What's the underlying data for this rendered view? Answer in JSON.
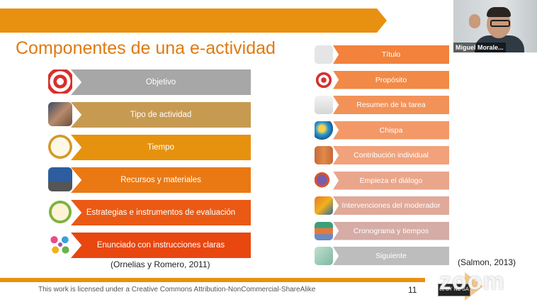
{
  "slide": {
    "title": "Componentes de una e-actividad",
    "left_items": [
      {
        "label": "Objetivo",
        "color": "#a7a7a7",
        "icon": "target-icon"
      },
      {
        "label": "Tipo de actividad",
        "color": "#c79a52",
        "icon": "activity-photo-icon"
      },
      {
        "label": "Tiempo",
        "color": "#e6920f",
        "icon": "alarm-clock-icon"
      },
      {
        "label": "Recursos y materiales",
        "color": "#ea7914",
        "icon": "laptop-icon"
      },
      {
        "label": "Estrategias e instrumentos de evaluación",
        "color": "#ea5a14",
        "icon": "stopwatch-question-icon"
      },
      {
        "label": "Enunciado con instrucciones claras",
        "color": "#e8470f",
        "icon": "colorful-dots-icon"
      }
    ],
    "right_items": [
      {
        "label": "Título",
        "color": "#f2823c",
        "icon": "math-logo-icon"
      },
      {
        "label": "Propósito",
        "color": "#f28a47",
        "icon": "target-small-icon"
      },
      {
        "label": "Resumen de la tarea",
        "color": "#f29258",
        "icon": "document-icon"
      },
      {
        "label": "Chispa",
        "color": "#f39968",
        "icon": "globe-icon"
      },
      {
        "label": "Contribución individual",
        "color": "#f1a27a",
        "icon": "people-icon"
      },
      {
        "label": "Empieza el diálogo",
        "color": "#eaa68a",
        "icon": "dialogue-icon"
      },
      {
        "label": "Intervenciones del moderador",
        "color": "#e0a999",
        "icon": "moderator-icon"
      },
      {
        "label": "Cronograma y tiempos",
        "color": "#d5aca6",
        "icon": "books-icon"
      },
      {
        "label": "Siguiente",
        "color": "#bdbdbd",
        "icon": "next-hand-icon"
      }
    ],
    "citation_left": "(Ornelias y Romero, 2011)",
    "citation_right": "(Salmon, 2013)",
    "license_text": "This work is licensed under a Creative Commons Attribution-NonCommercial-ShareAlike",
    "page_number": "11",
    "cc_badge": "cc  BY  NC  SA"
  },
  "video": {
    "participant_name": "Miguel Morale..."
  },
  "watermark": "zoom",
  "colors": {
    "accent": "#e8900f",
    "title": "#e07a10"
  }
}
